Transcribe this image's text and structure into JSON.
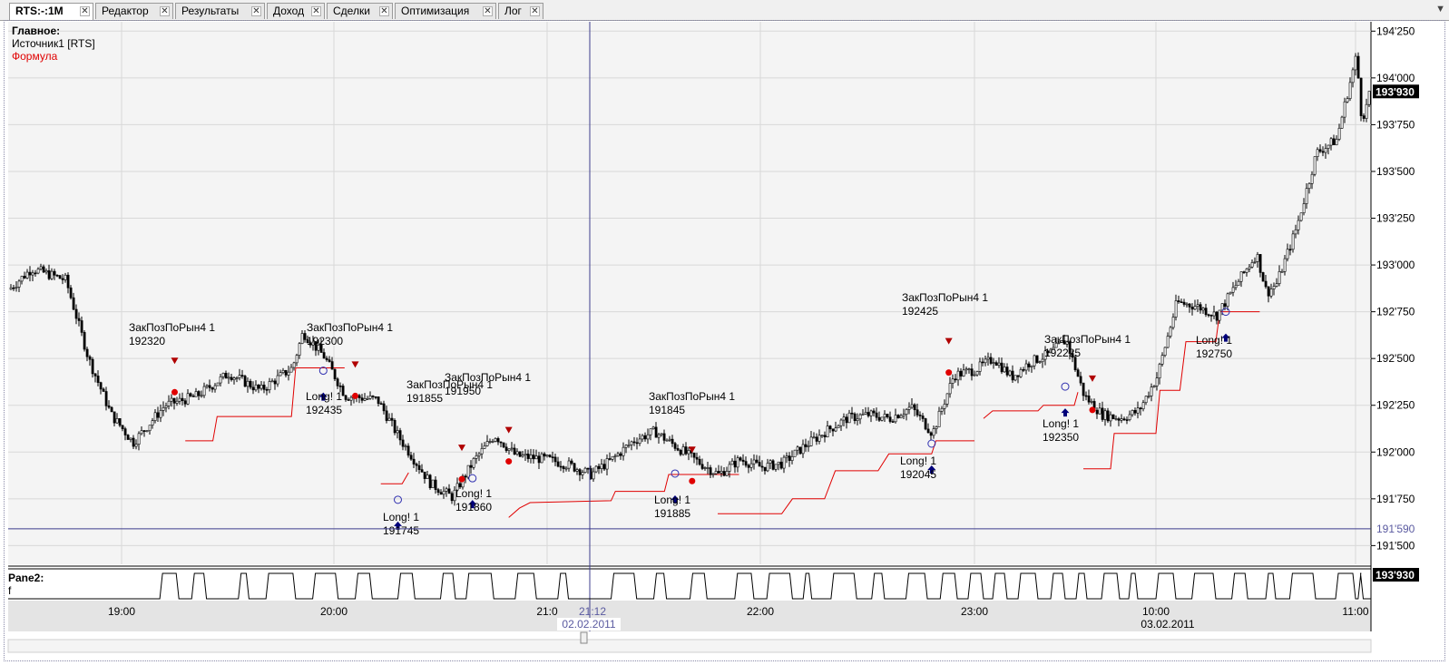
{
  "tabs": [
    {
      "label": "RTS:-:1M",
      "active": true
    },
    {
      "label": "Редактор",
      "active": false
    },
    {
      "label": "Результаты",
      "active": false
    },
    {
      "label": "Доход",
      "active": false
    },
    {
      "label": "Сделки",
      "active": false
    },
    {
      "label": "Оптимизация",
      "active": false
    },
    {
      "label": "Лог",
      "active": false
    }
  ],
  "legend": {
    "main": "Главное:",
    "source": "Источник1 [RTS]",
    "formula": "Формула"
  },
  "pane2": {
    "title": "Pane2:",
    "series": "f",
    "value_label": "193'930"
  },
  "colors": {
    "candle": "#000000",
    "stop_line": "#e00000",
    "buy_arrow": "#00007a",
    "sell_marker": "#b00000",
    "cursor": "#3c3c8c",
    "grid": "#d8d8d8"
  },
  "chart_data": {
    "type": "candlestick",
    "ylim": [
      191400,
      194300
    ],
    "y_ticks": [
      {
        "v": 194250,
        "label": "194'250"
      },
      {
        "v": 194000,
        "label": "194'000"
      },
      {
        "v": 193750,
        "label": "193'750"
      },
      {
        "v": 193500,
        "label": "193'500"
      },
      {
        "v": 193250,
        "label": "193'250"
      },
      {
        "v": 193000,
        "label": "193'000"
      },
      {
        "v": 192750,
        "label": "192'750"
      },
      {
        "v": 192500,
        "label": "192'500"
      },
      {
        "v": 192250,
        "label": "192'250"
      },
      {
        "v": 192000,
        "label": "192'000"
      },
      {
        "v": 191750,
        "label": "191'750"
      },
      {
        "v": 191500,
        "label": "191'500"
      }
    ],
    "current_price": {
      "v": 193930,
      "label": "193'930"
    },
    "cursor_price": {
      "v": 191590,
      "label": "191'590"
    },
    "cursor_time": {
      "t": 21.2,
      "time": "21:12",
      "date": "02.02.2011"
    },
    "x_ticks": [
      {
        "t": 19,
        "label": "19:00"
      },
      {
        "t": 20,
        "label": "20:00"
      },
      {
        "t": 21,
        "label": "21:0"
      },
      {
        "t": 22,
        "label": "22:00"
      },
      {
        "t": 23,
        "label": "23:00"
      },
      {
        "t": 24,
        "label": "10:00",
        "date": "03.02.2011"
      },
      {
        "t": 25,
        "label": "11:00"
      }
    ],
    "price_path": [
      [
        18.5,
        192870
      ],
      [
        18.6,
        192980
      ],
      [
        18.75,
        192920
      ],
      [
        18.85,
        192500
      ],
      [
        18.95,
        192200
      ],
      [
        19.05,
        192050
      ],
      [
        19.2,
        192250
      ],
      [
        19.35,
        192300
      ],
      [
        19.5,
        192420
      ],
      [
        19.65,
        192330
      ],
      [
        19.8,
        192450
      ],
      [
        19.85,
        192640
      ],
      [
        19.95,
        192510
      ],
      [
        20.05,
        192300
      ],
      [
        20.2,
        192280
      ],
      [
        20.3,
        192080
      ],
      [
        20.45,
        191830
      ],
      [
        20.55,
        191760
      ],
      [
        20.65,
        191950
      ],
      [
        20.75,
        192090
      ],
      [
        20.85,
        191980
      ],
      [
        21.0,
        191960
      ],
      [
        21.1,
        191930
      ],
      [
        21.2,
        191880
      ],
      [
        21.3,
        191960
      ],
      [
        21.4,
        192060
      ],
      [
        21.5,
        192110
      ],
      [
        21.6,
        192030
      ],
      [
        21.7,
        191950
      ],
      [
        21.8,
        191880
      ],
      [
        21.9,
        191960
      ],
      [
        22.0,
        191920
      ],
      [
        22.1,
        191940
      ],
      [
        22.2,
        192030
      ],
      [
        22.3,
        192110
      ],
      [
        22.4,
        192180
      ],
      [
        22.5,
        192200
      ],
      [
        22.6,
        192180
      ],
      [
        22.7,
        192240
      ],
      [
        22.8,
        192100
      ],
      [
        22.9,
        192410
      ],
      [
        23.0,
        192440
      ],
      [
        23.1,
        192500
      ],
      [
        23.2,
        192400
      ],
      [
        23.3,
        192480
      ],
      [
        23.4,
        192520
      ],
      [
        23.5,
        192600
      ],
      [
        23.6,
        192300
      ],
      [
        23.7,
        192200
      ],
      [
        23.8,
        192180
      ],
      [
        23.9,
        192220
      ],
      [
        24.0,
        192400
      ],
      [
        24.1,
        192800
      ],
      [
        24.2,
        192780
      ],
      [
        24.3,
        192730
      ],
      [
        24.4,
        192900
      ],
      [
        24.5,
        193060
      ],
      [
        24.55,
        192850
      ],
      [
        24.6,
        192900
      ],
      [
        24.7,
        193200
      ],
      [
        24.8,
        193600
      ],
      [
        24.9,
        193670
      ],
      [
        25.0,
        194120
      ],
      [
        25.1,
        193780
      ],
      [
        25.2,
        193850
      ],
      [
        25.25,
        193930
      ]
    ],
    "stop_segments": [
      [
        [
          19.3,
          192060
        ],
        [
          19.43,
          192060
        ],
        [
          19.45,
          192190
        ],
        [
          19.8,
          192190
        ],
        [
          19.82,
          192450
        ],
        [
          20.05,
          192450
        ]
      ],
      [
        [
          20.22,
          191830
        ],
        [
          20.32,
          191830
        ],
        [
          20.35,
          191890
        ]
      ],
      [
        [
          20.82,
          191650
        ],
        [
          20.87,
          191700
        ],
        [
          20.92,
          191730
        ],
        [
          21.3,
          191740
        ],
        [
          21.32,
          191790
        ],
        [
          21.55,
          191790
        ],
        [
          21.57,
          191880
        ],
        [
          21.9,
          191880
        ]
      ],
      [
        [
          21.8,
          191670
        ],
        [
          22.1,
          191670
        ],
        [
          22.15,
          191750
        ],
        [
          22.3,
          191750
        ],
        [
          22.35,
          191900
        ],
        [
          22.55,
          191900
        ],
        [
          22.6,
          191990
        ],
        [
          22.8,
          191990
        ],
        [
          22.82,
          192060
        ],
        [
          23.0,
          192060
        ]
      ],
      [
        [
          23.05,
          192180
        ],
        [
          23.1,
          192220
        ],
        [
          23.35,
          192220
        ],
        [
          23.38,
          192250
        ],
        [
          23.55,
          192250
        ],
        [
          23.57,
          192320
        ]
      ],
      [
        [
          23.6,
          191910
        ],
        [
          23.75,
          191910
        ],
        [
          23.77,
          192100
        ],
        [
          24.0,
          192100
        ],
        [
          24.02,
          192330
        ],
        [
          24.12,
          192330
        ],
        [
          24.15,
          192590
        ],
        [
          24.3,
          192590
        ],
        [
          24.32,
          192750
        ],
        [
          24.52,
          192750
        ]
      ]
    ],
    "signals": [
      {
        "kind": "sell",
        "label": "ЗакПозПоРын4 1",
        "price": "192320",
        "t": 19.25,
        "v": 192320,
        "lx": 142,
        "ly": 365
      },
      {
        "kind": "sell",
        "label": "ЗакПозПоРын4 1",
        "price": "192300",
        "t": 20.1,
        "v": 192300,
        "lx": 338,
        "ly": 365
      },
      {
        "kind": "sell",
        "label": "ЗакПозПоРын4 1",
        "price": "191855",
        "t": 20.6,
        "v": 191855,
        "lx": 448,
        "ly": 428
      },
      {
        "kind": "sell",
        "label": "ЗакПозПоРын4 1",
        "price": "191950",
        "t": 20.82,
        "v": 191950,
        "lx": 490,
        "ly": 420
      },
      {
        "kind": "sell",
        "label": "ЗакПозПоРын4 1",
        "price": "191845",
        "t": 21.68,
        "v": 191845,
        "lx": 715,
        "ly": 441
      },
      {
        "kind": "sell",
        "label": "ЗакПозПоРын4 1",
        "price": "192425",
        "t": 22.88,
        "v": 192425,
        "lx": 994,
        "ly": 332
      },
      {
        "kind": "sell",
        "label": "ЗакПозПоРын4 1",
        "price": "192225",
        "t": 23.65,
        "v": 192225,
        "lx": 1151,
        "ly": 378
      },
      {
        "kind": "buy",
        "label": "Long! 1",
        "price": "192435",
        "t": 19.95,
        "v": 192435,
        "lx": 337,
        "ly": 441
      },
      {
        "kind": "buy",
        "label": "Long! 1",
        "price": "191745",
        "t": 20.3,
        "v": 191745,
        "lx": 422,
        "ly": 574
      },
      {
        "kind": "buy",
        "label": "Long! 1",
        "price": "191860",
        "t": 20.65,
        "v": 191860,
        "lx": 502,
        "ly": 548
      },
      {
        "kind": "buy",
        "label": "Long! 1",
        "price": "191885",
        "t": 21.6,
        "v": 191885,
        "lx": 721,
        "ly": 555
      },
      {
        "kind": "buy",
        "label": "Long! 1",
        "price": "192045",
        "t": 22.8,
        "v": 192045,
        "lx": 992,
        "ly": 512
      },
      {
        "kind": "buy",
        "label": "Long! 1",
        "price": "192350",
        "t": 23.5,
        "v": 192350,
        "lx": 1149,
        "ly": 471
      },
      {
        "kind": "buy",
        "label": "Long! 1",
        "price": "192750",
        "t": 24.35,
        "v": 192750,
        "lx": 1318,
        "ly": 379
      }
    ],
    "pane2_pulses": [
      [
        19.18,
        19.27
      ],
      [
        19.33,
        19.4
      ],
      [
        19.55,
        19.6
      ],
      [
        19.68,
        19.82
      ],
      [
        19.9,
        20.02
      ],
      [
        20.1,
        20.18
      ],
      [
        20.3,
        20.38
      ],
      [
        20.5,
        20.57
      ],
      [
        20.62,
        20.75
      ],
      [
        20.85,
        20.95
      ],
      [
        21.05,
        21.1
      ],
      [
        21.3,
        21.42
      ],
      [
        21.5,
        21.56
      ],
      [
        21.67,
        21.75
      ],
      [
        21.88,
        21.97
      ],
      [
        22.03,
        22.15
      ],
      [
        22.2,
        22.24
      ],
      [
        22.33,
        22.45
      ],
      [
        22.52,
        22.58
      ],
      [
        22.68,
        22.78
      ],
      [
        22.84,
        22.92
      ],
      [
        22.97,
        23.05
      ],
      [
        23.1,
        23.18
      ],
      [
        23.24,
        23.35
      ],
      [
        23.42,
        23.5
      ],
      [
        23.56,
        23.62
      ],
      [
        23.7,
        23.8
      ],
      [
        23.85,
        23.9
      ],
      [
        24.0,
        24.1
      ],
      [
        24.18,
        24.3
      ],
      [
        24.38,
        24.46
      ],
      [
        24.55,
        24.6
      ],
      [
        24.67,
        24.8
      ],
      [
        24.9,
        25.0
      ],
      [
        25.05,
        25.15
      ]
    ]
  }
}
